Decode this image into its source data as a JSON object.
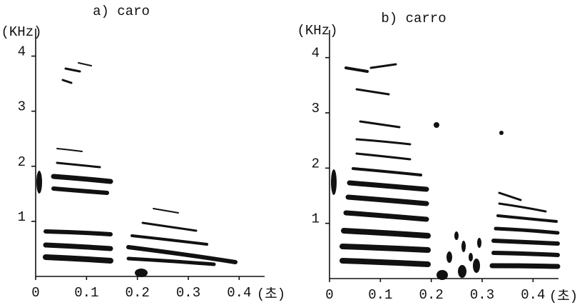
{
  "chart_data": [
    {
      "type": "spectrogram",
      "title": "a) caro",
      "y_label": "(KHz)",
      "x_label": "(초)",
      "xlim": [
        0,
        0.45
      ],
      "ylim": [
        0,
        4.5
      ],
      "xticks": [
        0,
        0.1,
        0.2,
        0.3,
        0.4
      ],
      "yticks": [
        1,
        2,
        3,
        4
      ]
    },
    {
      "type": "spectrogram",
      "title": "b) carro",
      "y_label": "(KHz)",
      "x_label": "(초)",
      "xlim": [
        0,
        0.45
      ],
      "ylim": [
        0,
        4.5
      ],
      "xticks": [
        0,
        0.1,
        0.2,
        0.3,
        0.4
      ],
      "yticks": [
        1,
        2,
        3,
        4
      ]
    }
  ]
}
